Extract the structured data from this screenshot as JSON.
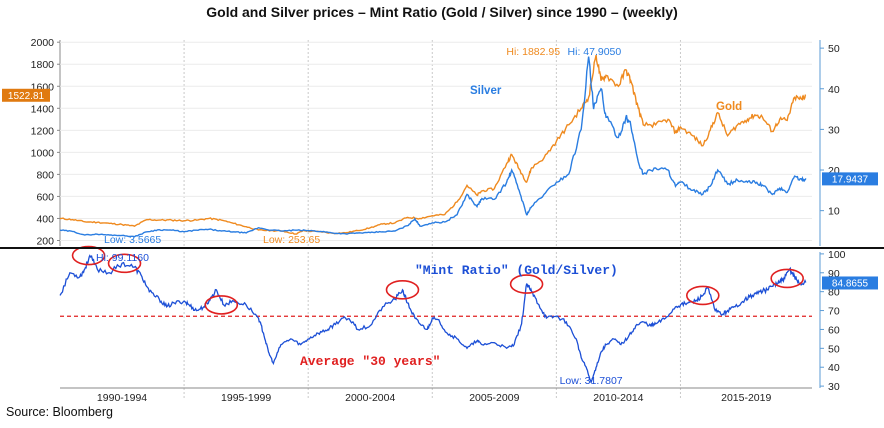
{
  "title": "Gold and Silver prices – Mint Ratio (Gold / Silver) since 1990 – (weekly)",
  "source": "Source: Bloomberg",
  "colors": {
    "gold": "#ef8a1f",
    "silver": "#2a7de1",
    "ratio": "#1c4fd6",
    "average": "#e02020",
    "circle": "#e02020",
    "last_gold_tag": "#e07a10",
    "last_silver_tag": "#2a7de1",
    "last_ratio_tag": "#2a7de1"
  },
  "chart_data": [
    {
      "type": "line",
      "panel": "top",
      "left_axis": {
        "ticks": [
          200,
          400,
          600,
          800,
          1000,
          1200,
          1400,
          1600,
          1800,
          2000
        ],
        "ylim": [
          150,
          2020
        ]
      },
      "right_axis": {
        "ticks": [
          10,
          20,
          30,
          40,
          50
        ],
        "ylim": [
          1.3,
          52
        ]
      },
      "series": [
        {
          "name": "Gold",
          "axis": "left",
          "values": [
            [
              1990.0,
              400
            ],
            [
              1990.5,
              390
            ],
            [
              1991.0,
              370
            ],
            [
              1991.5,
              365
            ],
            [
              1992.0,
              355
            ],
            [
              1992.5,
              345
            ],
            [
              1993.0,
              330
            ],
            [
              1993.5,
              390
            ],
            [
              1994.0,
              385
            ],
            [
              1994.5,
              385
            ],
            [
              1995.0,
              380
            ],
            [
              1995.5,
              385
            ],
            [
              1996.0,
              400
            ],
            [
              1996.5,
              385
            ],
            [
              1997.0,
              355
            ],
            [
              1997.5,
              325
            ],
            [
              1998.0,
              295
            ],
            [
              1998.5,
              290
            ],
            [
              1999.0,
              285
            ],
            [
              1999.5,
              258
            ],
            [
              1999.8,
              290
            ],
            [
              2000.0,
              285
            ],
            [
              2000.5,
              280
            ],
            [
              2001.0,
              265
            ],
            [
              2001.5,
              270
            ],
            [
              2002.0,
              290
            ],
            [
              2002.5,
              315
            ],
            [
              2003.0,
              350
            ],
            [
              2003.5,
              360
            ],
            [
              2004.0,
              410
            ],
            [
              2004.5,
              400
            ],
            [
              2005.0,
              425
            ],
            [
              2005.5,
              435
            ],
            [
              2006.0,
              550
            ],
            [
              2006.4,
              700
            ],
            [
              2006.8,
              610
            ],
            [
              2007.0,
              650
            ],
            [
              2007.5,
              670
            ],
            [
              2008.0,
              900
            ],
            [
              2008.2,
              980
            ],
            [
              2008.5,
              850
            ],
            [
              2008.8,
              730
            ],
            [
              2009.0,
              860
            ],
            [
              2009.5,
              950
            ],
            [
              2010.0,
              1100
            ],
            [
              2010.5,
              1250
            ],
            [
              2011.0,
              1400
            ],
            [
              2011.3,
              1500
            ],
            [
              2011.6,
              1882.95
            ],
            [
              2011.8,
              1650
            ],
            [
              2012.0,
              1700
            ],
            [
              2012.5,
              1600
            ],
            [
              2012.8,
              1750
            ],
            [
              2013.0,
              1650
            ],
            [
              2013.3,
              1400
            ],
            [
              2013.5,
              1250
            ],
            [
              2014.0,
              1250
            ],
            [
              2014.5,
              1300
            ],
            [
              2014.8,
              1180
            ],
            [
              2015.0,
              1230
            ],
            [
              2015.5,
              1150
            ],
            [
              2015.9,
              1060
            ],
            [
              2016.2,
              1200
            ],
            [
              2016.5,
              1360
            ],
            [
              2016.9,
              1150
            ],
            [
              2017.3,
              1250
            ],
            [
              2017.7,
              1300
            ],
            [
              2018.0,
              1340
            ],
            [
              2018.3,
              1320
            ],
            [
              2018.7,
              1190
            ],
            [
              2019.0,
              1300
            ],
            [
              2019.3,
              1290
            ],
            [
              2019.6,
              1500
            ],
            [
              2019.9,
              1480
            ],
            [
              2020.05,
              1522.81
            ]
          ]
        },
        {
          "name": "Silver",
          "axis": "right",
          "values": [
            [
              1990.0,
              5.2
            ],
            [
              1990.5,
              4.9
            ],
            [
              1991.0,
              4.0
            ],
            [
              1991.5,
              4.2
            ],
            [
              1992.0,
              4.0
            ],
            [
              1992.5,
              3.9
            ],
            [
              1993.0,
              3.6
            ],
            [
              1993.5,
              4.8
            ],
            [
              1994.0,
              5.3
            ],
            [
              1994.5,
              5.2
            ],
            [
              1995.0,
              4.8
            ],
            [
              1995.5,
              5.2
            ],
            [
              1996.0,
              5.4
            ],
            [
              1996.5,
              5.0
            ],
            [
              1997.0,
              4.8
            ],
            [
              1997.5,
              4.5
            ],
            [
              1998.0,
              5.8
            ],
            [
              1998.5,
              5.2
            ],
            [
              1999.0,
              5.0
            ],
            [
              1999.5,
              5.2
            ],
            [
              2000.0,
              5.1
            ],
            [
              2000.5,
              4.9
            ],
            [
              2001.0,
              4.5
            ],
            [
              2001.5,
              4.3
            ],
            [
              2002.0,
              4.5
            ],
            [
              2002.5,
              4.6
            ],
            [
              2003.0,
              4.8
            ],
            [
              2003.5,
              5.0
            ],
            [
              2004.0,
              6.3
            ],
            [
              2004.3,
              8.0
            ],
            [
              2004.5,
              6.2
            ],
            [
              2005.0,
              7.0
            ],
            [
              2005.5,
              7.2
            ],
            [
              2006.0,
              9.0
            ],
            [
              2006.4,
              14.0
            ],
            [
              2006.8,
              11.0
            ],
            [
              2007.0,
              13.0
            ],
            [
              2007.5,
              12.8
            ],
            [
              2008.0,
              17.0
            ],
            [
              2008.2,
              20.0
            ],
            [
              2008.5,
              15.0
            ],
            [
              2008.8,
              9.0
            ],
            [
              2009.0,
              11.0
            ],
            [
              2009.5,
              14.0
            ],
            [
              2010.0,
              17.0
            ],
            [
              2010.5,
              19.0
            ],
            [
              2011.0,
              30.0
            ],
            [
              2011.3,
              47.905
            ],
            [
              2011.5,
              35.0
            ],
            [
              2011.8,
              40.0
            ],
            [
              2012.0,
              33.0
            ],
            [
              2012.5,
              28.0
            ],
            [
              2012.8,
              33.0
            ],
            [
              2013.0,
              31.0
            ],
            [
              2013.3,
              22.0
            ],
            [
              2013.5,
              19.0
            ],
            [
              2014.0,
              20.5
            ],
            [
              2014.5,
              20.0
            ],
            [
              2014.8,
              16.0
            ],
            [
              2015.0,
              17.0
            ],
            [
              2015.5,
              15.0
            ],
            [
              2015.9,
              14.0
            ],
            [
              2016.2,
              16.0
            ],
            [
              2016.5,
              20.0
            ],
            [
              2016.9,
              16.5
            ],
            [
              2017.3,
              17.5
            ],
            [
              2017.7,
              17.0
            ],
            [
              2018.0,
              17.0
            ],
            [
              2018.3,
              16.3
            ],
            [
              2018.7,
              14.0
            ],
            [
              2019.0,
              15.5
            ],
            [
              2019.3,
              14.5
            ],
            [
              2019.6,
              18.5
            ],
            [
              2019.9,
              17.5
            ],
            [
              2020.05,
              17.9437
            ]
          ]
        }
      ],
      "annotations": {
        "gold_high": "Hi: 1882.95",
        "silver_high": "Hi: 47.9050",
        "silver_low": "Low: 3.5665",
        "gold_low": "Low: 253.65",
        "silver_label": "Silver",
        "gold_label": "Gold",
        "gold_last": "1522.81",
        "silver_last": "17.9437"
      }
    },
    {
      "type": "line",
      "panel": "bottom",
      "right_axis": {
        "ticks": [
          30,
          40,
          50,
          60,
          70,
          80,
          90,
          100
        ],
        "ylim": [
          29,
          101
        ]
      },
      "x_ticks": [
        "1990-1994",
        "1995-1999",
        "2000-2004",
        "2005-2009",
        "2010-2014",
        "2015-2019"
      ],
      "xlim": [
        1990.0,
        2020.3
      ],
      "series": [
        {
          "name": "\"Mint Ratio\" (Gold/Silver)",
          "values": [
            [
              1990.0,
              78
            ],
            [
              1990.4,
              90
            ],
            [
              1990.8,
              88
            ],
            [
              1991.0,
              92
            ],
            [
              1991.2,
              99.116
            ],
            [
              1991.5,
              92
            ],
            [
              1992.0,
              90
            ],
            [
              1992.5,
              95
            ],
            [
              1993.0,
              93
            ],
            [
              1993.3,
              88
            ],
            [
              1993.6,
              80
            ],
            [
              1994.0,
              76
            ],
            [
              1994.3,
              72
            ],
            [
              1994.6,
              74
            ],
            [
              1995.0,
              75
            ],
            [
              1995.2,
              73
            ],
            [
              1995.5,
              70
            ],
            [
              1995.8,
              72
            ],
            [
              1996.0,
              75
            ],
            [
              1996.3,
              81
            ],
            [
              1996.6,
              73
            ],
            [
              1997.0,
              75
            ],
            [
              1997.5,
              73
            ],
            [
              1998.0,
              66
            ],
            [
              1998.2,
              58
            ],
            [
              1998.4,
              48
            ],
            [
              1998.6,
              42
            ],
            [
              1998.9,
              52
            ],
            [
              1999.3,
              55
            ],
            [
              1999.7,
              52
            ],
            [
              2000.0,
              55
            ],
            [
              2000.4,
              58
            ],
            [
              2000.8,
              60
            ],
            [
              2001.0,
              62
            ],
            [
              2001.4,
              66
            ],
            [
              2001.8,
              64
            ],
            [
              2002.0,
              60
            ],
            [
              2002.5,
              62
            ],
            [
              2003.0,
              72
            ],
            [
              2003.5,
              76
            ],
            [
              2003.8,
              81
            ],
            [
              2004.0,
              74
            ],
            [
              2004.3,
              66
            ],
            [
              2004.5,
              63
            ],
            [
              2004.8,
              60
            ],
            [
              2005.0,
              66
            ],
            [
              2005.3,
              64
            ],
            [
              2005.6,
              58
            ],
            [
              2006.0,
              55
            ],
            [
              2006.4,
              50
            ],
            [
              2006.8,
              54
            ],
            [
              2007.0,
              52
            ],
            [
              2007.5,
              53
            ],
            [
              2008.0,
              50
            ],
            [
              2008.3,
              52
            ],
            [
              2008.6,
              63
            ],
            [
              2008.8,
              84
            ],
            [
              2009.0,
              80
            ],
            [
              2009.3,
              73
            ],
            [
              2009.6,
              66
            ],
            [
              2010.0,
              67
            ],
            [
              2010.4,
              64
            ],
            [
              2010.8,
              55
            ],
            [
              2011.0,
              45
            ],
            [
              2011.2,
              40
            ],
            [
              2011.4,
              31.7807
            ],
            [
              2011.6,
              40
            ],
            [
              2011.8,
              48
            ],
            [
              2012.0,
              52
            ],
            [
              2012.3,
              55
            ],
            [
              2012.6,
              52
            ],
            [
              2012.9,
              56
            ],
            [
              2013.2,
              62
            ],
            [
              2013.5,
              64
            ],
            [
              2013.8,
              62
            ],
            [
              2014.0,
              63
            ],
            [
              2014.4,
              66
            ],
            [
              2014.8,
              72
            ],
            [
              2015.0,
              73
            ],
            [
              2015.3,
              74
            ],
            [
              2015.6,
              75
            ],
            [
              2015.9,
              78
            ],
            [
              2016.1,
              82
            ],
            [
              2016.4,
              70
            ],
            [
              2016.7,
              68
            ],
            [
              2016.9,
              70
            ],
            [
              2017.2,
              72
            ],
            [
              2017.6,
              76
            ],
            [
              2017.9,
              78
            ],
            [
              2018.2,
              80
            ],
            [
              2018.5,
              81
            ],
            [
              2018.8,
              84
            ],
            [
              2019.0,
              85
            ],
            [
              2019.2,
              87
            ],
            [
              2019.4,
              92
            ],
            [
              2019.6,
              88
            ],
            [
              2019.8,
              84
            ],
            [
              2020.05,
              84.8655
            ]
          ]
        },
        {
          "name": "Average \"30 years\"",
          "values": [
            [
              1990.0,
              67
            ],
            [
              2020.3,
              67
            ]
          ]
        }
      ],
      "circled_peaks_x": [
        1991.15,
        1992.6,
        1996.5,
        2003.8,
        2008.8,
        2015.9,
        2019.3
      ],
      "annotations": {
        "ratio_high": "Hi: 99.1160",
        "ratio_low": "Low: 31.7807",
        "series_title": "\"Mint Ratio\"  (Gold/Silver)",
        "average_label": "Average \"30 years\"",
        "ratio_last": "84.8655"
      }
    }
  ]
}
